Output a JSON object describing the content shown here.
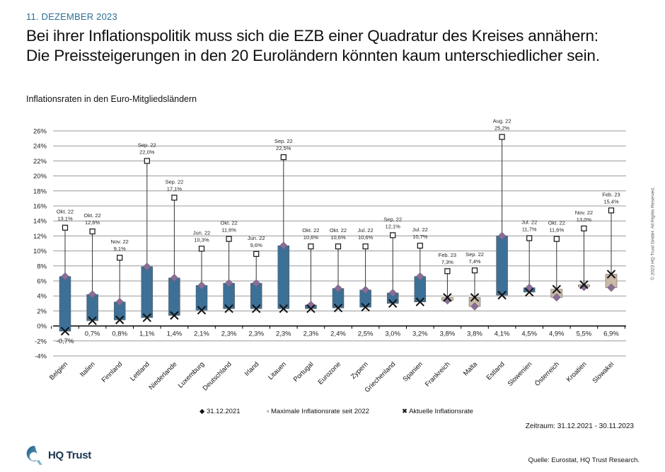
{
  "header": {
    "date": "11. DEZEMBER 2023",
    "headline_line1": "Bei ihrer Inflationspolitik muss sich die EZB einer Quadratur des Kreises annähern:",
    "headline_line2": "Die Preissteigerungen in den 20 Euroländern könnten kaum unterschiedlicher sein."
  },
  "chart_data": {
    "type": "box-range",
    "title": "Inflationsraten in den Euro-Mitgliedsländern",
    "ylim": [
      -4,
      26
    ],
    "yticks": [
      "-4%",
      "-2%",
      "0%",
      "2%",
      "4%",
      "6%",
      "8%",
      "10%",
      "12%",
      "14%",
      "16%",
      "18%",
      "20%",
      "22%",
      "24%",
      "26%"
    ],
    "ytick_values": [
      -4,
      -2,
      0,
      2,
      4,
      6,
      8,
      10,
      12,
      14,
      16,
      18,
      20,
      22,
      24,
      26
    ],
    "grid": true,
    "legend_position": "bottom",
    "colors": {
      "falling": "#3d7096",
      "rising": "#c9b9a5",
      "start_marker": "#8a6d99",
      "grid": "#888888"
    },
    "series_names": {
      "start": "31.12.2021",
      "max": "Maximale Inflationsrate seit 2022",
      "current": "Aktuelle Inflationsrate"
    },
    "categories": [
      "Belgien",
      "Italien",
      "Finnland",
      "Lettland",
      "Niederlande",
      "Luxemburg",
      "Deutschland",
      "Irland",
      "Litauen",
      "Portugal",
      "Eurozone",
      "Zypern",
      "Griechenland",
      "Spanien",
      "Frankreich",
      "Malta",
      "Estland",
      "Slowenien",
      "Österreich",
      "Kroatien",
      "Slowakei"
    ],
    "start": [
      6.6,
      4.2,
      3.2,
      7.9,
      6.4,
      5.4,
      5.7,
      5.7,
      10.7,
      2.8,
      5.0,
      4.8,
      4.4,
      6.6,
      3.4,
      2.6,
      12.0,
      5.1,
      3.8,
      5.2,
      5.1
    ],
    "max": [
      13.1,
      12.6,
      9.1,
      22.0,
      17.1,
      10.3,
      11.6,
      9.6,
      22.5,
      10.6,
      10.6,
      10.6,
      12.1,
      10.7,
      7.3,
      7.4,
      25.2,
      11.7,
      11.6,
      13.0,
      15.4
    ],
    "max_month": [
      "Okt. 22",
      "Okt. 22",
      "Nov. 22",
      "Sep. 22",
      "Sep. 22",
      "Jun. 22",
      "Okt. 22",
      "Jun. 22",
      "Sep. 22",
      "Okt. 22",
      "Okt. 22",
      "Jul. 22",
      "Sep. 22",
      "Jul. 22",
      "Feb. 23",
      "Sep. 22",
      "Aug. 22",
      "Jul. 22",
      "Okt. 22",
      "Nov. 22",
      "Feb. 23"
    ],
    "max_labels": [
      "13,1%",
      "12,6%",
      "9,1%",
      "22,0%",
      "17,1%",
      "10,3%",
      "11,6%",
      "9,6%",
      "22,5%",
      "10,6%",
      "10,6%",
      "10,6%",
      "12,1%",
      "10,7%",
      "7,3%",
      "7,4%",
      "25,2%",
      "11,7%",
      "11,6%",
      "13,0%",
      "15,4%"
    ],
    "current": [
      -0.7,
      0.7,
      0.8,
      1.1,
      1.4,
      2.1,
      2.3,
      2.3,
      2.3,
      2.3,
      2.4,
      2.5,
      3.0,
      3.2,
      3.8,
      3.8,
      4.1,
      4.5,
      4.9,
      5.5,
      6.9
    ],
    "current_labels": [
      "-0,7%",
      "0,7%",
      "0,8%",
      "1,1%",
      "1,4%",
      "2,1%",
      "2,3%",
      "2,3%",
      "2,3%",
      "2,3%",
      "2,4%",
      "2,5%",
      "3,0%",
      "3,2%",
      "3,8%",
      "3,8%",
      "4,1%",
      "4,5%",
      "4,9%",
      "5,5%",
      "6,9%"
    ]
  },
  "legend": {
    "start": "31.12.2021",
    "max": "Maximale Inflationsrate seit 2022",
    "current": "Aktuelle Inflationsrate"
  },
  "footer": {
    "zeitraum": "Zeitraum: 31.12.2021 - 30.11.2023",
    "quelle": "Quelle: Eurostat, HQ Trust Research.",
    "copyright": "© 2023 HQ Trust GmbH. All Rights Reserved.",
    "logo_text": "HQ Trust"
  }
}
